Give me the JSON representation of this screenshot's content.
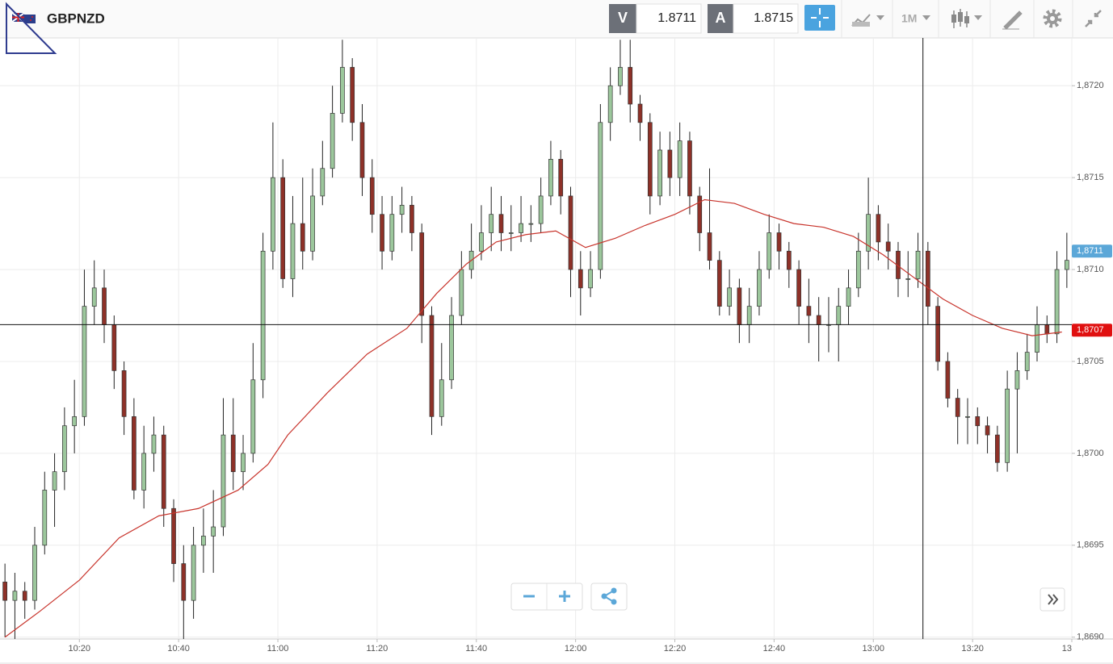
{
  "header": {
    "symbol": "GBPNZD",
    "bid_label": "V",
    "bid": "1.8711",
    "ask_label": "A",
    "ask": "1.8715",
    "timeframe": "1M"
  },
  "chart_data": {
    "type": "candlestick",
    "x": [
      "10:05",
      "10:07",
      "10:09",
      "10:11",
      "10:13",
      "10:15",
      "10:17",
      "10:19",
      "10:21",
      "10:23",
      "10:25",
      "10:27",
      "10:29",
      "10:31",
      "10:33",
      "10:35",
      "10:37",
      "10:39",
      "10:41",
      "10:43",
      "10:45",
      "10:47",
      "10:49",
      "10:51",
      "10:53",
      "10:55",
      "10:57",
      "10:59",
      "11:01",
      "11:03",
      "11:05",
      "11:07",
      "11:09",
      "11:11",
      "11:13",
      "11:15",
      "11:17",
      "11:19",
      "11:21",
      "11:23",
      "11:25",
      "11:27",
      "11:29",
      "11:31",
      "11:33",
      "11:35",
      "11:37",
      "11:39",
      "11:41",
      "11:43",
      "11:45",
      "11:47",
      "11:49",
      "11:51",
      "11:53",
      "11:55",
      "11:57",
      "11:59",
      "12:01",
      "12:03",
      "12:05",
      "12:07",
      "12:09",
      "12:11",
      "12:13",
      "12:15",
      "12:17",
      "12:19",
      "12:21",
      "12:23",
      "12:25",
      "12:27",
      "12:29",
      "12:31",
      "12:33",
      "12:35",
      "12:37",
      "12:39",
      "12:41",
      "12:43",
      "12:45",
      "12:47",
      "12:49",
      "12:51",
      "12:53",
      "12:55",
      "12:57",
      "12:59",
      "13:01",
      "13:03",
      "13:05",
      "13:07",
      "13:09",
      "13:11",
      "13:13",
      "13:15",
      "13:17",
      "13:19",
      "13:21",
      "13:23",
      "13:25",
      "13:27",
      "13:29",
      "13:31",
      "13:33",
      "13:35",
      "13:37",
      "13:39"
    ],
    "open": [
      1.8693,
      1.8692,
      1.86925,
      1.8692,
      1.8695,
      1.8698,
      1.8699,
      1.87015,
      1.8702,
      1.8708,
      1.8709,
      1.8707,
      1.87045,
      1.8702,
      1.8698,
      1.87,
      1.8701,
      1.8697,
      1.8694,
      1.8692,
      1.8695,
      1.86955,
      1.8696,
      1.8701,
      1.8699,
      1.87,
      1.8704,
      1.8711,
      1.8715,
      1.87095,
      1.87125,
      1.8711,
      1.8714,
      1.87155,
      1.87185,
      1.8721,
      1.8718,
      1.8715,
      1.8713,
      1.8711,
      1.8713,
      1.87135,
      1.8712,
      1.87075,
      1.8702,
      1.8704,
      1.87075,
      1.871,
      1.8711,
      1.8712,
      1.8713,
      1.8712,
      1.8712,
      1.87125,
      1.87125,
      1.8714,
      1.8716,
      1.8714,
      1.871,
      1.8709,
      1.871,
      1.8718,
      1.872,
      1.8721,
      1.8719,
      1.8718,
      1.8714,
      1.87165,
      1.8715,
      1.8717,
      1.8714,
      1.8712,
      1.87105,
      1.8708,
      1.8709,
      1.8707,
      1.8708,
      1.871,
      1.8712,
      1.8711,
      1.871,
      1.8708,
      1.87075,
      1.8707,
      1.8707,
      1.8708,
      1.8709,
      1.8711,
      1.8713,
      1.87115,
      1.8711,
      1.87095,
      1.87095,
      1.8711,
      1.8708,
      1.8705,
      1.8703,
      1.8702,
      1.8702,
      1.87015,
      1.8701,
      1.86995,
      1.87035,
      1.87045,
      1.87055,
      1.8707,
      1.87065,
      1.871
    ],
    "high": [
      1.8694,
      1.86935,
      1.8693,
      1.8696,
      1.8699,
      1.87,
      1.87025,
      1.8704,
      1.871,
      1.87105,
      1.871,
      1.87075,
      1.8705,
      1.8703,
      1.87015,
      1.8702,
      1.87015,
      1.86975,
      1.8695,
      1.8696,
      1.8697,
      1.8698,
      1.8703,
      1.8703,
      1.8701,
      1.8706,
      1.8712,
      1.8718,
      1.8716,
      1.8714,
      1.8715,
      1.87155,
      1.8717,
      1.872,
      1.87225,
      1.87215,
      1.8719,
      1.8716,
      1.8714,
      1.8714,
      1.87145,
      1.8714,
      1.87125,
      1.8708,
      1.8706,
      1.87085,
      1.8711,
      1.87125,
      1.87135,
      1.87145,
      1.8714,
      1.87135,
      1.8714,
      1.87135,
      1.8715,
      1.8717,
      1.87165,
      1.87145,
      1.8711,
      1.8711,
      1.8719,
      1.8721,
      1.87225,
      1.87225,
      1.87195,
      1.87185,
      1.87175,
      1.87175,
      1.8718,
      1.87175,
      1.87145,
      1.87155,
      1.8711,
      1.871,
      1.87095,
      1.8709,
      1.8711,
      1.8713,
      1.87125,
      1.87115,
      1.87105,
      1.87095,
      1.87085,
      1.87085,
      1.8709,
      1.871,
      1.8712,
      1.8715,
      1.87135,
      1.87125,
      1.87115,
      1.8711,
      1.8712,
      1.87115,
      1.87085,
      1.87055,
      1.87035,
      1.8703,
      1.87025,
      1.8702,
      1.87015,
      1.87045,
      1.87055,
      1.87065,
      1.8708,
      1.87075,
      1.8711,
      1.8712
    ],
    "low": [
      1.869,
      1.86895,
      1.8691,
      1.86915,
      1.86945,
      1.8696,
      1.8698,
      1.87,
      1.87015,
      1.8707,
      1.8706,
      1.87035,
      1.8701,
      1.86975,
      1.8697,
      1.8699,
      1.8696,
      1.8693,
      1.8689,
      1.8691,
      1.86935,
      1.86935,
      1.86955,
      1.8698,
      1.8698,
      1.86995,
      1.8703,
      1.871,
      1.8709,
      1.87085,
      1.871,
      1.87105,
      1.87135,
      1.8715,
      1.8718,
      1.8717,
      1.8714,
      1.8712,
      1.871,
      1.87105,
      1.8712,
      1.8711,
      1.8706,
      1.8701,
      1.87015,
      1.87035,
      1.8707,
      1.87095,
      1.87105,
      1.8711,
      1.8711,
      1.8711,
      1.87115,
      1.87115,
      1.8712,
      1.87135,
      1.8713,
      1.87085,
      1.87075,
      1.87085,
      1.87095,
      1.8717,
      1.87195,
      1.8718,
      1.8717,
      1.8713,
      1.87135,
      1.8714,
      1.8714,
      1.8713,
      1.8711,
      1.871,
      1.87075,
      1.87075,
      1.8706,
      1.8706,
      1.87075,
      1.87095,
      1.871,
      1.8709,
      1.8707,
      1.8706,
      1.8705,
      1.87055,
      1.8705,
      1.8707,
      1.87085,
      1.871,
      1.87105,
      1.871,
      1.87085,
      1.87085,
      1.8709,
      1.8707,
      1.87045,
      1.87025,
      1.87005,
      1.87005,
      1.87005,
      1.87,
      1.8699,
      1.8699,
      1.87,
      1.8704,
      1.8705,
      1.8706,
      1.8706,
      1.8709
    ],
    "close": [
      1.8692,
      1.86925,
      1.8692,
      1.8695,
      1.8698,
      1.8699,
      1.87015,
      1.8702,
      1.8708,
      1.8709,
      1.8707,
      1.87045,
      1.8702,
      1.8698,
      1.87,
      1.8701,
      1.8697,
      1.8694,
      1.8692,
      1.8695,
      1.86955,
      1.8696,
      1.8701,
      1.8699,
      1.87,
      1.8704,
      1.8711,
      1.8715,
      1.87095,
      1.87125,
      1.8711,
      1.8714,
      1.87155,
      1.87185,
      1.8721,
      1.8718,
      1.8715,
      1.8713,
      1.8711,
      1.8713,
      1.87135,
      1.8712,
      1.87075,
      1.8702,
      1.8704,
      1.87075,
      1.871,
      1.8711,
      1.8712,
      1.8713,
      1.8712,
      1.8712,
      1.87125,
      1.87125,
      1.8714,
      1.8716,
      1.8714,
      1.871,
      1.8709,
      1.871,
      1.8718,
      1.872,
      1.8721,
      1.8719,
      1.8718,
      1.8714,
      1.87165,
      1.8715,
      1.8717,
      1.8714,
      1.8712,
      1.87105,
      1.8708,
      1.8709,
      1.8707,
      1.8708,
      1.871,
      1.8712,
      1.8711,
      1.871,
      1.8708,
      1.87075,
      1.8707,
      1.8707,
      1.8708,
      1.8709,
      1.8711,
      1.8713,
      1.87115,
      1.8711,
      1.87095,
      1.87095,
      1.8711,
      1.8708,
      1.8705,
      1.8703,
      1.8702,
      1.8702,
      1.87015,
      1.8701,
      1.86995,
      1.87035,
      1.87045,
      1.87055,
      1.8707,
      1.87065,
      1.871,
      1.87105
    ],
    "up_color": "#9cc79c",
    "down_color": "#8e3128",
    "moving_average": {
      "color": "#c8342c",
      "x": [
        "10:05",
        "10:12",
        "10:20",
        "10:28",
        "10:36",
        "10:44",
        "10:52",
        "10:58",
        "11:02",
        "11:10",
        "11:18",
        "11:26",
        "11:32",
        "11:38",
        "11:44",
        "11:50",
        "11:56",
        "12:02",
        "12:08",
        "12:14",
        "12:20",
        "12:26",
        "12:32",
        "12:38",
        "12:44",
        "12:50",
        "12:56",
        "13:02",
        "13:08",
        "13:14",
        "13:20",
        "13:26",
        "13:32",
        "13:38"
      ],
      "values": [
        1.869,
        1.86914,
        1.86931,
        1.86954,
        1.86966,
        1.8697,
        1.8698,
        1.86994,
        1.8701,
        1.87033,
        1.87054,
        1.87068,
        1.87087,
        1.87103,
        1.87115,
        1.87119,
        1.87121,
        1.87112,
        1.87117,
        1.87124,
        1.8713,
        1.87138,
        1.87136,
        1.8713,
        1.87125,
        1.87123,
        1.87118,
        1.87108,
        1.87096,
        1.87084,
        1.87075,
        1.87068,
        1.87064,
        1.87066
      ]
    },
    "xlim": [
      "10:04",
      "13:40"
    ],
    "xticks": [
      "10:20",
      "10:40",
      "11:00",
      "11:20",
      "11:40",
      "12:00",
      "12:20",
      "12:40",
      "13:00",
      "13:20",
      {
        "value": "13:40",
        "label": "13"
      }
    ],
    "ylim": [
      1.86899,
      1.87226
    ],
    "yticks": [
      {
        "value": 1.869,
        "label": "1,8690"
      },
      {
        "value": 1.8695,
        "label": "1,8695"
      },
      {
        "value": 1.87,
        "label": "1,8700"
      },
      {
        "value": 1.8705,
        "label": "1,8705"
      },
      {
        "value": 1.871,
        "label": "1,8710"
      },
      {
        "value": 1.8715,
        "label": "1,8715"
      },
      {
        "value": 1.872,
        "label": "1,8720"
      }
    ],
    "grid": true,
    "price_labels": [
      {
        "value": 1.8711,
        "label": "1,8711",
        "color": "#5ba7d8"
      },
      {
        "value": 1.87067,
        "label": "1,8707",
        "color": "#e01010"
      }
    ],
    "crosshair": {
      "x": "13:10",
      "y": 1.8707
    }
  }
}
